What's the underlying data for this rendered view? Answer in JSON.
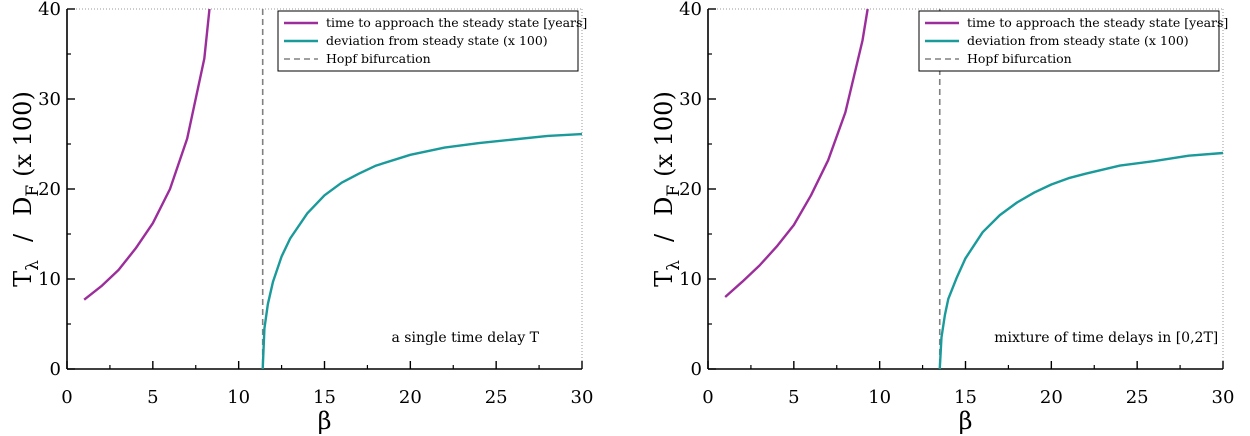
{
  "chart_data": [
    {
      "type": "line",
      "xlabel": "β",
      "ylabel": {
        "t": "T",
        "t_sub": "λ",
        "sep": "/",
        "d": "D",
        "d_sub": "F",
        "suffix": "(x 100)"
      },
      "xlim": [
        0,
        30
      ],
      "ylim": [
        0,
        40
      ],
      "xticks": [
        0,
        5,
        10,
        15,
        20,
        25,
        30
      ],
      "yticks": [
        0,
        10,
        20,
        30,
        40
      ],
      "annotation": "a single time delay T",
      "legend_position": "top-right",
      "vline": {
        "name": "Hopf bifurcation",
        "x": 11.4,
        "color": "#808080",
        "style": "dashed"
      },
      "series": [
        {
          "name": "time to approach the steady state [years]",
          "color": "#9b2e9b",
          "x": [
            1,
            2,
            3,
            4,
            5,
            6,
            7,
            8,
            8.3
          ],
          "y": [
            7.7,
            9.2,
            11.0,
            13.4,
            16.2,
            20.0,
            25.6,
            34.5,
            40
          ]
        },
        {
          "name": "deviation from steady state (x 100)",
          "color": "#1a9a9a",
          "x": [
            11.4,
            11.5,
            11.7,
            12,
            12.5,
            13,
            14,
            15,
            16,
            17,
            18,
            20,
            22,
            24,
            26,
            28,
            30
          ],
          "y": [
            0,
            4.5,
            7.2,
            9.7,
            12.5,
            14.5,
            17.3,
            19.3,
            20.7,
            21.7,
            22.6,
            23.8,
            24.6,
            25.1,
            25.5,
            25.9,
            26.1
          ]
        }
      ]
    },
    {
      "type": "line",
      "xlabel": "β",
      "ylabel": {
        "t": "T",
        "t_sub": "λ",
        "sep": "/",
        "d": "D",
        "d_sub": "F",
        "suffix": "(x 100)"
      },
      "xlim": [
        0,
        30
      ],
      "ylim": [
        0,
        40
      ],
      "xticks": [
        0,
        5,
        10,
        15,
        20,
        25,
        30
      ],
      "yticks": [
        0,
        10,
        20,
        30,
        40
      ],
      "annotation": "mixture of time delays in [0,2T]",
      "legend_position": "top-right",
      "vline": {
        "name": "Hopf bifurcation",
        "x": 13.5,
        "color": "#808080",
        "style": "dashed"
      },
      "series": [
        {
          "name": "time to approach the steady state [years]",
          "color": "#9b2e9b",
          "x": [
            1,
            2,
            3,
            4,
            5,
            6,
            7,
            8,
            9,
            9.3
          ],
          "y": [
            8.0,
            9.7,
            11.5,
            13.6,
            16.0,
            19.3,
            23.2,
            28.5,
            36.5,
            40
          ]
        },
        {
          "name": "deviation from steady state (x 100)",
          "color": "#1a9a9a",
          "x": [
            13.5,
            13.6,
            13.8,
            14,
            14.5,
            15,
            16,
            17,
            18,
            19,
            20,
            21,
            22,
            24,
            26,
            28,
            30
          ],
          "y": [
            0,
            3.5,
            6.0,
            7.8,
            10.2,
            12.3,
            15.2,
            17.1,
            18.5,
            19.6,
            20.5,
            21.2,
            21.7,
            22.6,
            23.1,
            23.7,
            24.0
          ]
        }
      ]
    }
  ]
}
